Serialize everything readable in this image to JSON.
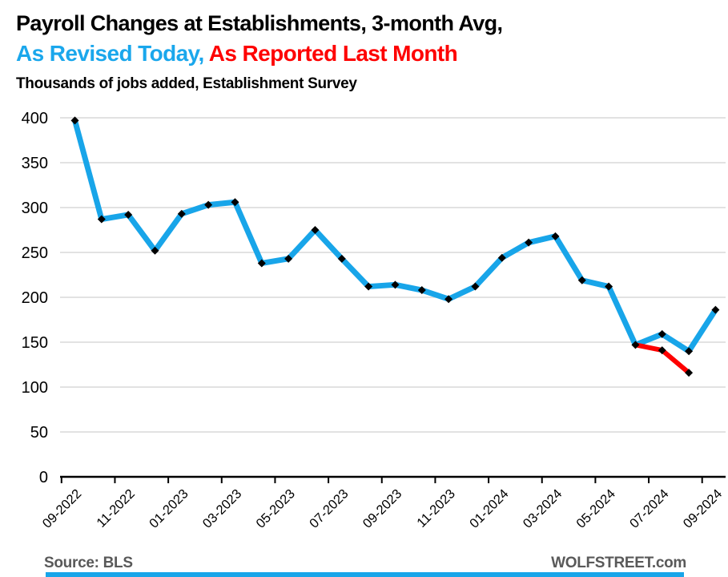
{
  "title": {
    "line1": "Payroll Changes at Establishments, 3-month Avg,",
    "line2_part1": "As Revised Today,",
    "line2_part2": " As Reported Last Month"
  },
  "subtitle": "Thousands of jobs added, Establishment Survey",
  "footer": {
    "source": "Source: BLS",
    "brand": "WOLFSTREET.com"
  },
  "colors": {
    "title_blue": "#1aa7ec",
    "title_red": "#fe0000",
    "line_blue": "#18a5e9",
    "line_red": "#fe0000",
    "grid": "#d9d9d9",
    "axis": "#000000",
    "marker": "#000000",
    "footer_text": "#595959",
    "bottom_bar": "#18a5e9"
  },
  "chart_data": {
    "type": "line",
    "title": "Payroll Changes at Establishments, 3-month Avg, As Revised Today, As Reported Last Month",
    "subtitle": "Thousands of jobs added, Establishment Survey",
    "xlabel": "",
    "ylabel": "Thousands of jobs added",
    "ylim": [
      0,
      400
    ],
    "ytick_interval": 50,
    "ytick_labels": [
      "0",
      "50",
      "100",
      "150",
      "200",
      "250",
      "300",
      "350",
      "400"
    ],
    "grid": "horizontal",
    "legend_position": "in-title",
    "x": [
      "09-2022",
      "10-2022",
      "11-2022",
      "12-2022",
      "01-2023",
      "02-2023",
      "03-2023",
      "04-2023",
      "05-2023",
      "06-2023",
      "07-2023",
      "08-2023",
      "09-2023",
      "10-2023",
      "11-2023",
      "12-2023",
      "01-2024",
      "02-2024",
      "03-2024",
      "04-2024",
      "05-2024",
      "06-2024",
      "07-2024",
      "08-2024",
      "09-2024"
    ],
    "xtick_labels": [
      "09-2022",
      "11-2022",
      "01-2023",
      "03-2023",
      "05-2023",
      "07-2023",
      "09-2023",
      "11-2023",
      "01-2024",
      "03-2024",
      "05-2024",
      "07-2024",
      "09-2024"
    ],
    "series": [
      {
        "name": "As Revised Today",
        "color_key": "line_blue",
        "start_index": 0,
        "values": [
          397,
          287,
          292,
          252,
          293,
          303,
          306,
          238,
          243,
          275,
          243,
          212,
          214,
          208,
          198,
          212,
          244,
          261,
          268,
          219,
          212,
          147,
          159,
          140,
          186
        ]
      },
      {
        "name": "As Reported Last Month",
        "color_key": "line_red",
        "start_index": 21,
        "values": [
          147,
          141,
          116
        ]
      }
    ]
  }
}
